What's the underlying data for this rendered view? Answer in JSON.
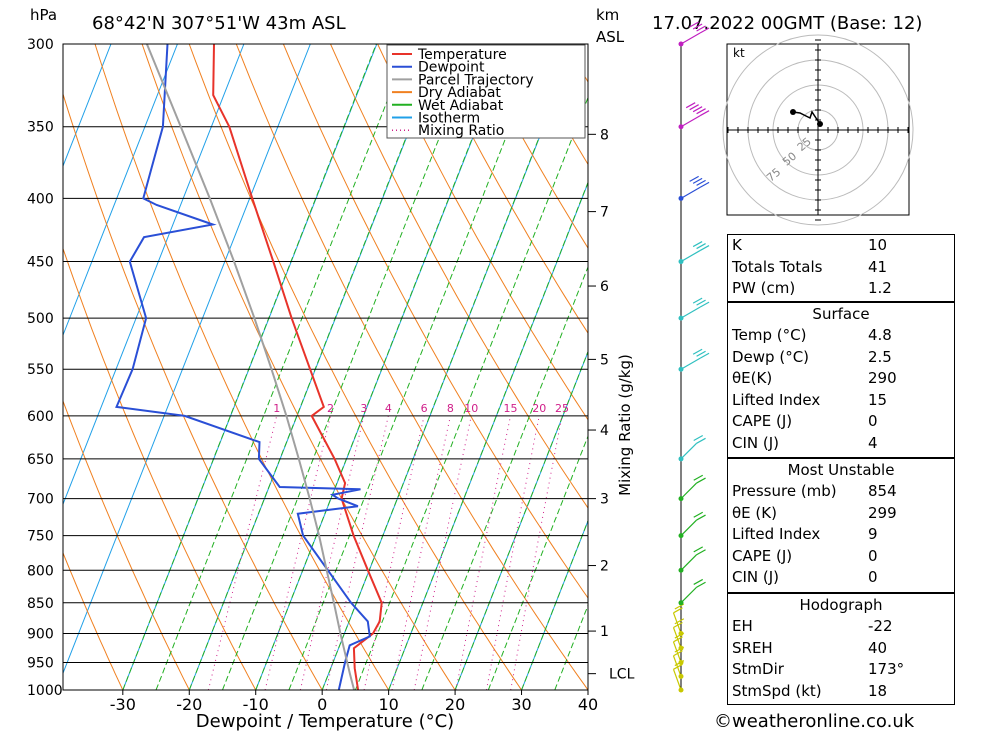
{
  "header": {
    "pressure_unit": "hPa",
    "location": "68°42'N  307°51'W  43m  ASL",
    "km_unit": "km",
    "asl_unit": "ASL",
    "datetime": "17.07.2022  00GMT  (Base: 12)"
  },
  "chart_data": {
    "type": "line",
    "title": "68°42'N  307°51'W  43m  ASL",
    "xlabel": "Dewpoint / Temperature (°C)",
    "ylabel": "hPa",
    "x_ticks": [
      -30,
      -20,
      -10,
      0,
      10,
      20,
      30,
      40
    ],
    "x_range": [
      -39,
      40
    ],
    "y_ticks": [
      300,
      350,
      400,
      450,
      500,
      550,
      600,
      650,
      700,
      750,
      800,
      850,
      900,
      950,
      1000
    ],
    "y_range": [
      300,
      1000
    ],
    "y_scale": "log",
    "skew": "skew-T",
    "km_ticks": [
      {
        "km": "1",
        "p": 896
      },
      {
        "km": "2",
        "p": 793
      },
      {
        "km": "3",
        "p": 700
      },
      {
        "km": "4",
        "p": 616
      },
      {
        "km": "5",
        "p": 540
      },
      {
        "km": "6",
        "p": 471
      },
      {
        "km": "7",
        "p": 410
      },
      {
        "km": "8",
        "p": 355
      }
    ],
    "lcl_label": "LCL",
    "lcl_p": 970,
    "right_axis_label": "Mixing Ratio  (g/kg)",
    "mixing_ratio_labels": [
      "1",
      "2",
      "3",
      "4",
      "6",
      "8",
      "10",
      "15",
      "20",
      "25"
    ],
    "mixing_ratio_values": [
      1,
      2,
      3,
      4,
      6,
      8,
      10,
      15,
      20,
      25
    ],
    "legend": {
      "position": "top-right",
      "items": [
        {
          "name": "Temperature",
          "color": "#e8332a",
          "style": "solid"
        },
        {
          "name": "Dewpoint",
          "color": "#2a4fd6",
          "style": "solid"
        },
        {
          "name": "Parcel Trajectory",
          "color": "#a0a0a0",
          "style": "solid"
        },
        {
          "name": "Dry Adiabat",
          "color": "#f08020",
          "style": "solid"
        },
        {
          "name": "Wet Adiabat",
          "color": "#22b022",
          "style": "solid"
        },
        {
          "name": "Isotherm",
          "color": "#20a0e8",
          "style": "solid"
        },
        {
          "name": "Mixing Ratio",
          "color": "#d0208a",
          "style": "dotted"
        }
      ]
    },
    "series": [
      {
        "name": "Temperature",
        "color": "#e8332a",
        "points": [
          [
            1000,
            5.4
          ],
          [
            960,
            3.6
          ],
          [
            925,
            2.3
          ],
          [
            900,
            4.3
          ],
          [
            880,
            4.6
          ],
          [
            850,
            3.8
          ],
          [
            800,
            -0.2
          ],
          [
            750,
            -4.4
          ],
          [
            700,
            -8.4
          ],
          [
            680,
            -8.8
          ],
          [
            650,
            -11.8
          ],
          [
            600,
            -17.8
          ],
          [
            590,
            -16.5
          ],
          [
            550,
            -20.8
          ],
          [
            500,
            -26.6
          ],
          [
            450,
            -32.7
          ],
          [
            400,
            -39.6
          ],
          [
            350,
            -47.3
          ],
          [
            330,
            -51.6
          ],
          [
            300,
            -54.5
          ]
        ]
      },
      {
        "name": "Dewpoint",
        "color": "#2a4fd6",
        "points": [
          [
            1000,
            2.5
          ],
          [
            950,
            1.8
          ],
          [
            920,
            1.5
          ],
          [
            905,
            4.0
          ],
          [
            880,
            2.8
          ],
          [
            850,
            -0.8
          ],
          [
            750,
            -12.0
          ],
          [
            720,
            -14.1
          ],
          [
            710,
            -5.5
          ],
          [
            700,
            -8.9
          ],
          [
            695,
            -10.0
          ],
          [
            688,
            -6.1
          ],
          [
            685,
            -18.4
          ],
          [
            650,
            -23.2
          ],
          [
            630,
            -24.1
          ],
          [
            600,
            -36.9
          ],
          [
            590,
            -47.7
          ],
          [
            550,
            -47.5
          ],
          [
            500,
            -48.5
          ],
          [
            450,
            -54.3
          ],
          [
            430,
            -53.6
          ],
          [
            420,
            -44.0
          ],
          [
            405,
            -53.6
          ],
          [
            400,
            -56.0
          ],
          [
            380,
            -56.5
          ],
          [
            350,
            -57.3
          ],
          [
            300,
            -61.5
          ]
        ]
      },
      {
        "name": "Parcel Trajectory",
        "color": "#a0a0a0",
        "points": [
          [
            1000,
            4.8
          ],
          [
            970,
            3.2
          ],
          [
            940,
            1.6
          ],
          [
            900,
            -0.6
          ],
          [
            850,
            -3.4
          ],
          [
            800,
            -6.4
          ],
          [
            750,
            -9.6
          ],
          [
            700,
            -13.2
          ],
          [
            650,
            -17.2
          ],
          [
            600,
            -21.6
          ],
          [
            550,
            -26.6
          ],
          [
            500,
            -32.2
          ],
          [
            450,
            -38.6
          ],
          [
            400,
            -46.0
          ],
          [
            350,
            -54.6
          ],
          [
            300,
            -64.6
          ]
        ]
      }
    ],
    "wind_barbs": [
      {
        "p": 1000,
        "speed_kt": 15,
        "color": "#c8c800"
      },
      {
        "p": 975,
        "speed_kt": 15,
        "color": "#c8c800"
      },
      {
        "p": 950,
        "speed_kt": 15,
        "color": "#c8c800"
      },
      {
        "p": 925,
        "speed_kt": 15,
        "color": "#c8c800"
      },
      {
        "p": 900,
        "speed_kt": 15,
        "color": "#c8c800"
      },
      {
        "p": 850,
        "speed_kt": 15,
        "color": "#22b022"
      },
      {
        "p": 800,
        "speed_kt": 15,
        "color": "#22b022"
      },
      {
        "p": 750,
        "speed_kt": 15,
        "color": "#22b022"
      },
      {
        "p": 700,
        "speed_kt": 20,
        "color": "#22b022"
      },
      {
        "p": 650,
        "speed_kt": 20,
        "color": "#30c0c0"
      },
      {
        "p": 550,
        "speed_kt": 25,
        "color": "#30c0c0"
      },
      {
        "p": 500,
        "speed_kt": 30,
        "color": "#30c0c0"
      },
      {
        "p": 450,
        "speed_kt": 30,
        "color": "#30c0c0"
      },
      {
        "p": 400,
        "speed_kt": 35,
        "color": "#2a4fd6"
      },
      {
        "p": 350,
        "speed_kt": 50,
        "color": "#c020c0"
      },
      {
        "p": 300,
        "speed_kt": 40,
        "color": "#c020c0"
      }
    ]
  },
  "hodograph": {
    "unit": "kt",
    "ring_labels": [
      "25",
      "50",
      "75"
    ]
  },
  "indices": [
    {
      "label": "K",
      "value": "10"
    },
    {
      "label": "Totals Totals",
      "value": "41"
    },
    {
      "label": "PW (cm)",
      "value": "1.2"
    }
  ],
  "surface": {
    "title": "Surface",
    "rows": [
      {
        "label": "Temp (°C)",
        "value": "4.8"
      },
      {
        "label": "Dewp (°C)",
        "value": "2.5"
      },
      {
        "label": "θE(K)",
        "value": "290"
      },
      {
        "label": "Lifted Index",
        "value": "15"
      },
      {
        "label": "CAPE (J)",
        "value": "0"
      },
      {
        "label": "CIN (J)",
        "value": "4"
      }
    ]
  },
  "most_unstable": {
    "title": "Most Unstable",
    "rows": [
      {
        "label": "Pressure (mb)",
        "value": "854"
      },
      {
        "label": "θE (K)",
        "value": "299"
      },
      {
        "label": "Lifted Index",
        "value": "9"
      },
      {
        "label": "CAPE (J)",
        "value": "0"
      },
      {
        "label": "CIN (J)",
        "value": "0"
      }
    ]
  },
  "hodograph_table": {
    "title": "Hodograph",
    "rows": [
      {
        "label": "EH",
        "value": "-22"
      },
      {
        "label": "SREH",
        "value": "40"
      },
      {
        "label": "StmDir",
        "value": "173°"
      },
      {
        "label": "StmSpd (kt)",
        "value": "18"
      }
    ]
  },
  "footer": {
    "copyright": "©weatheronline.co.uk"
  }
}
